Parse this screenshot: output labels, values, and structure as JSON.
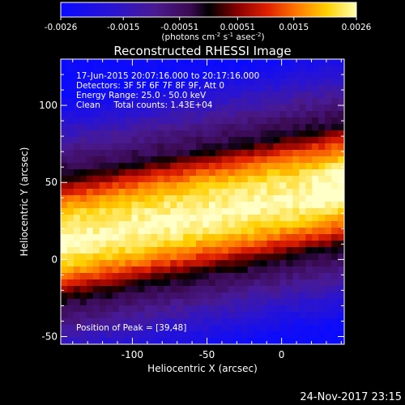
{
  "chart_data": {
    "type": "heatmap",
    "title": "Reconstructed RHESSI Image",
    "xlabel": "Heliocentric X (arcsec)",
    "ylabel": "Heliocentric Y (arcsec)",
    "xlim": [
      -148,
      42
    ],
    "ylim": [
      -55,
      130
    ],
    "x_ticks": [
      -100,
      -50,
      0
    ],
    "y_ticks": [
      -50,
      0,
      50,
      100
    ],
    "colorbar": {
      "min": -0.0026,
      "max": 0.0026,
      "ticks": [
        "-0.0026",
        "-0.0015",
        "-0.00051",
        "0.00051",
        "0.0015",
        "0.0026"
      ],
      "unit_label": "(photons cm",
      "unit_exp1": "-2",
      "unit_mid": " s",
      "unit_exp2": "-1",
      "unit_mid2": " asec",
      "unit_exp3": "-2",
      "unit_close": ")"
    },
    "info_lines": [
      "17-Jun-2015 20:07:16.000 to 20:17:16.000",
      "Detectors: 3F 5F 6F 7F 8F 9F, Att 0",
      "Energy Range: 25.0 - 50.0 keV",
      "Clean     Total counts: 1.43E+04"
    ],
    "peak_label": "Position of Peak = [39,48]",
    "peak_position": [
      39,
      48
    ],
    "band": {
      "center_left": 14,
      "center_right": 48,
      "peak_value": 0.0026
    }
  },
  "footer": {
    "timestamp": "24-Nov-2017 23:15"
  },
  "colors": {
    "background": "#000000",
    "text": "#ffffff"
  }
}
